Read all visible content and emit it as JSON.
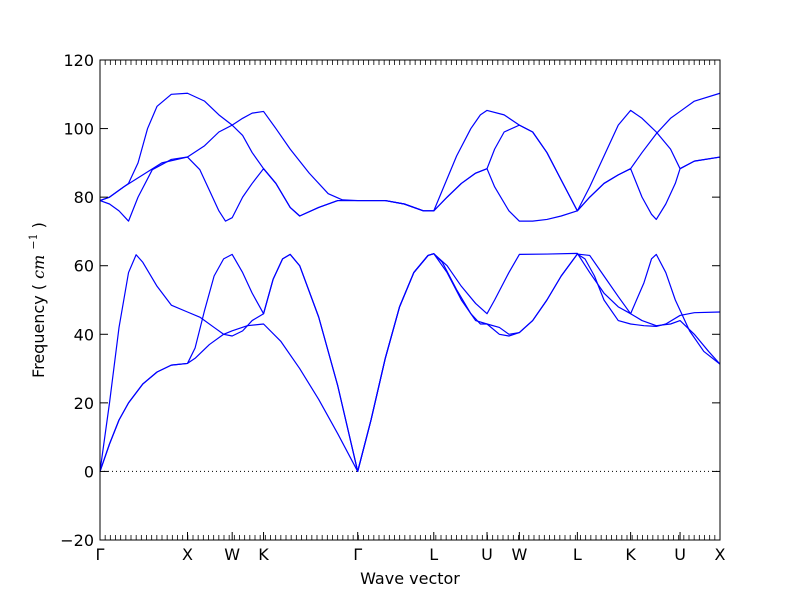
{
  "chart_data": {
    "type": "line",
    "title": "",
    "xlabel": "Wave vector",
    "ylabel": "Frequency",
    "ylabel_unit_base": "cm",
    "ylabel_unit_exp": "−1",
    "ylim": [
      -20,
      120
    ],
    "yticks": [
      -20,
      0,
      20,
      40,
      60,
      80,
      100,
      120
    ],
    "xlim": [
      0,
      6.52
    ],
    "high_symmetry_points": [
      {
        "label": "Γ",
        "x": 0.0
      },
      {
        "label": "X",
        "x": 0.92
      },
      {
        "label": "W",
        "x": 1.39
      },
      {
        "label": "K",
        "x": 1.72
      },
      {
        "label": "Γ",
        "x": 2.71
      },
      {
        "label": "L",
        "x": 3.51
      },
      {
        "label": "U",
        "x": 4.07
      },
      {
        "label": "W",
        "x": 4.41
      },
      {
        "label": "L",
        "x": 5.02
      },
      {
        "label": "K",
        "x": 5.58
      },
      {
        "label": "U",
        "x": 6.1
      },
      {
        "label": "X",
        "x": 6.52
      }
    ],
    "zero_line": {
      "y": 0,
      "style": "dotted"
    },
    "line_color": "#0000ff",
    "series": [
      {
        "values": [
          [
            0,
            0
          ],
          [
            0.1,
            8
          ],
          [
            0.2,
            15
          ],
          [
            0.3,
            20
          ],
          [
            0.45,
            25.5
          ],
          [
            0.6,
            29
          ],
          [
            0.75,
            31
          ],
          [
            0.92,
            31.5
          ],
          [
            1.0,
            33
          ],
          [
            1.15,
            37
          ],
          [
            1.3,
            40
          ],
          [
            1.39,
            41
          ],
          [
            1.55,
            42.5
          ],
          [
            1.72,
            43
          ],
          [
            1.9,
            38
          ],
          [
            2.1,
            30
          ],
          [
            2.3,
            21
          ],
          [
            2.5,
            11
          ],
          [
            2.71,
            0
          ],
          [
            2.85,
            15
          ],
          [
            3.0,
            33
          ],
          [
            3.15,
            48
          ],
          [
            3.3,
            58
          ],
          [
            3.45,
            63
          ],
          [
            3.51,
            63.5
          ],
          [
            3.65,
            60
          ],
          [
            3.8,
            54
          ],
          [
            3.95,
            49
          ],
          [
            4.07,
            46
          ],
          [
            4.15,
            50
          ],
          [
            4.3,
            58
          ],
          [
            4.41,
            63.3
          ],
          [
            4.7,
            63.4
          ],
          [
            5.02,
            63.6
          ],
          [
            5.15,
            58
          ],
          [
            5.3,
            52
          ],
          [
            5.45,
            48
          ],
          [
            5.58,
            46
          ],
          [
            5.7,
            44
          ],
          [
            5.85,
            42.5
          ],
          [
            6.0,
            43
          ],
          [
            6.1,
            44
          ],
          [
            6.25,
            40
          ],
          [
            6.4,
            35
          ],
          [
            6.52,
            31.3
          ]
        ]
      },
      {
        "values": [
          [
            0,
            0
          ],
          [
            0.1,
            8
          ],
          [
            0.2,
            15
          ],
          [
            0.3,
            20
          ],
          [
            0.45,
            25.5
          ],
          [
            0.6,
            29
          ],
          [
            0.75,
            31
          ],
          [
            0.92,
            31.5
          ],
          [
            1.0,
            36
          ],
          [
            1.1,
            47
          ],
          [
            1.2,
            57
          ],
          [
            1.3,
            62
          ],
          [
            1.39,
            63.3
          ],
          [
            1.5,
            58
          ],
          [
            1.6,
            52
          ],
          [
            1.72,
            46
          ],
          [
            1.82,
            56
          ],
          [
            1.92,
            62
          ],
          [
            2.0,
            63.3
          ],
          [
            2.1,
            60
          ],
          [
            2.3,
            45
          ],
          [
            2.5,
            25
          ],
          [
            2.71,
            0
          ],
          [
            2.85,
            15
          ],
          [
            3.0,
            33
          ],
          [
            3.15,
            48
          ],
          [
            3.3,
            58
          ],
          [
            3.45,
            63
          ],
          [
            3.51,
            63.5
          ],
          [
            3.65,
            58
          ],
          [
            3.8,
            50
          ],
          [
            3.95,
            44
          ],
          [
            4.07,
            43
          ],
          [
            4.2,
            42
          ],
          [
            4.3,
            40
          ],
          [
            4.41,
            40.5
          ],
          [
            4.55,
            44
          ],
          [
            4.7,
            50
          ],
          [
            4.85,
            57
          ],
          [
            5.02,
            63.4
          ],
          [
            5.15,
            63
          ],
          [
            5.3,
            57
          ],
          [
            5.45,
            51
          ],
          [
            5.58,
            46
          ],
          [
            5.72,
            55
          ],
          [
            5.8,
            62
          ],
          [
            5.85,
            63.3
          ],
          [
            5.95,
            58
          ],
          [
            6.05,
            50
          ],
          [
            6.1,
            47
          ],
          [
            6.2,
            41
          ],
          [
            6.35,
            35
          ],
          [
            6.52,
            31.3
          ]
        ]
      },
      {
        "values": [
          [
            0,
            0
          ],
          [
            0.1,
            20
          ],
          [
            0.2,
            42
          ],
          [
            0.3,
            58
          ],
          [
            0.38,
            63.2
          ],
          [
            0.45,
            61
          ],
          [
            0.6,
            54
          ],
          [
            0.75,
            48.5
          ],
          [
            0.92,
            46.5
          ],
          [
            1.05,
            45
          ],
          [
            1.2,
            42
          ],
          [
            1.3,
            40
          ],
          [
            1.39,
            39.5
          ],
          [
            1.5,
            41
          ],
          [
            1.6,
            44
          ],
          [
            1.72,
            46
          ],
          [
            1.82,
            56
          ],
          [
            1.92,
            62
          ],
          [
            2.0,
            63.3
          ],
          [
            2.1,
            60
          ],
          [
            2.3,
            45
          ],
          [
            2.5,
            25
          ],
          [
            2.71,
            0
          ],
          [
            2.85,
            15
          ],
          [
            3.0,
            33
          ],
          [
            3.15,
            48
          ],
          [
            3.3,
            58
          ],
          [
            3.45,
            63
          ],
          [
            3.51,
            63.5
          ],
          [
            3.6,
            61
          ],
          [
            3.75,
            53
          ],
          [
            3.9,
            46
          ],
          [
            4.0,
            43
          ],
          [
            4.07,
            43
          ],
          [
            4.2,
            40
          ],
          [
            4.3,
            39.5
          ],
          [
            4.41,
            40.5
          ],
          [
            4.55,
            44
          ],
          [
            4.7,
            50
          ],
          [
            4.85,
            57
          ],
          [
            5.02,
            63.4
          ],
          [
            5.1,
            62
          ],
          [
            5.2,
            57
          ],
          [
            5.3,
            50
          ],
          [
            5.45,
            44
          ],
          [
            5.58,
            43
          ],
          [
            5.72,
            42.5
          ],
          [
            5.85,
            42.3
          ],
          [
            5.95,
            43
          ],
          [
            6.1,
            45.5
          ],
          [
            6.25,
            46.3
          ],
          [
            6.52,
            46.5
          ]
        ]
      },
      {
        "values": [
          [
            0,
            79
          ],
          [
            0.1,
            78
          ],
          [
            0.2,
            76
          ],
          [
            0.3,
            73
          ],
          [
            0.4,
            80
          ],
          [
            0.55,
            88
          ],
          [
            0.75,
            91
          ],
          [
            0.92,
            91.7
          ],
          [
            1.05,
            88
          ],
          [
            1.15,
            82
          ],
          [
            1.25,
            76
          ],
          [
            1.32,
            73
          ],
          [
            1.39,
            74
          ],
          [
            1.5,
            80
          ],
          [
            1.6,
            84
          ],
          [
            1.72,
            88.3
          ],
          [
            1.85,
            84
          ],
          [
            2.0,
            77
          ],
          [
            2.1,
            74.5
          ],
          [
            2.3,
            77
          ],
          [
            2.5,
            79
          ],
          [
            2.71,
            79
          ],
          [
            3.0,
            79
          ],
          [
            3.2,
            78
          ],
          [
            3.4,
            76
          ],
          [
            3.51,
            76
          ],
          [
            3.65,
            80
          ],
          [
            3.8,
            84
          ],
          [
            3.95,
            87
          ],
          [
            4.07,
            88.3
          ],
          [
            4.15,
            83
          ],
          [
            4.3,
            76
          ],
          [
            4.41,
            73
          ],
          [
            4.55,
            73
          ],
          [
            4.7,
            73.5
          ],
          [
            4.85,
            74.5
          ],
          [
            5.02,
            76
          ],
          [
            5.15,
            80
          ],
          [
            5.3,
            84
          ],
          [
            5.45,
            86.5
          ],
          [
            5.58,
            88.3
          ],
          [
            5.7,
            80
          ],
          [
            5.8,
            75
          ],
          [
            5.85,
            73.5
          ],
          [
            5.95,
            78
          ],
          [
            6.05,
            84
          ],
          [
            6.1,
            88.3
          ],
          [
            6.25,
            90.5
          ],
          [
            6.52,
            91.7
          ]
        ]
      },
      {
        "values": [
          [
            0,
            79
          ],
          [
            0.1,
            80
          ],
          [
            0.25,
            83
          ],
          [
            0.45,
            86.5
          ],
          [
            0.65,
            90
          ],
          [
            0.92,
            91.7
          ],
          [
            1.1,
            95
          ],
          [
            1.25,
            99
          ],
          [
            1.39,
            101
          ],
          [
            1.5,
            98
          ],
          [
            1.6,
            93
          ],
          [
            1.72,
            88.3
          ],
          [
            1.85,
            84
          ],
          [
            2.0,
            77
          ],
          [
            2.1,
            74.5
          ],
          [
            2.3,
            77
          ],
          [
            2.5,
            79
          ],
          [
            2.71,
            79
          ],
          [
            3.0,
            79
          ],
          [
            3.2,
            78
          ],
          [
            3.4,
            76
          ],
          [
            3.51,
            76
          ],
          [
            3.65,
            80
          ],
          [
            3.8,
            84
          ],
          [
            3.95,
            87
          ],
          [
            4.07,
            88.3
          ],
          [
            4.15,
            94
          ],
          [
            4.25,
            99
          ],
          [
            4.41,
            101
          ],
          [
            4.55,
            99
          ],
          [
            4.7,
            93
          ],
          [
            4.85,
            85
          ],
          [
            5.02,
            76
          ],
          [
            5.15,
            80
          ],
          [
            5.3,
            84
          ],
          [
            5.45,
            86.5
          ],
          [
            5.58,
            88.3
          ],
          [
            5.7,
            93
          ],
          [
            5.85,
            98.5
          ],
          [
            6.0,
            103
          ],
          [
            6.1,
            105
          ],
          [
            6.25,
            108
          ],
          [
            6.52,
            110.3
          ]
        ]
      },
      {
        "values": [
          [
            0,
            79
          ],
          [
            0.1,
            80
          ],
          [
            0.2,
            82
          ],
          [
            0.3,
            84
          ],
          [
            0.4,
            90
          ],
          [
            0.5,
            100
          ],
          [
            0.6,
            106.5
          ],
          [
            0.75,
            110
          ],
          [
            0.92,
            110.3
          ],
          [
            1.1,
            108
          ],
          [
            1.25,
            104
          ],
          [
            1.39,
            101
          ],
          [
            1.5,
            103
          ],
          [
            1.6,
            104.5
          ],
          [
            1.72,
            105
          ],
          [
            1.85,
            100
          ],
          [
            2.0,
            94
          ],
          [
            2.2,
            87
          ],
          [
            2.4,
            81
          ],
          [
            2.55,
            79.2
          ],
          [
            2.71,
            79
          ],
          [
            3.0,
            79
          ],
          [
            3.2,
            78
          ],
          [
            3.4,
            76
          ],
          [
            3.51,
            76
          ],
          [
            3.6,
            82
          ],
          [
            3.75,
            92
          ],
          [
            3.9,
            100
          ],
          [
            4.0,
            104
          ],
          [
            4.07,
            105.3
          ],
          [
            4.25,
            104
          ],
          [
            4.41,
            101
          ],
          [
            4.55,
            99
          ],
          [
            4.7,
            93
          ],
          [
            4.85,
            85
          ],
          [
            5.02,
            76
          ],
          [
            5.15,
            83
          ],
          [
            5.3,
            92
          ],
          [
            5.45,
            101
          ],
          [
            5.58,
            105.3
          ],
          [
            5.7,
            103
          ],
          [
            5.85,
            99
          ],
          [
            6.0,
            94
          ],
          [
            6.1,
            88.3
          ],
          [
            6.25,
            90.5
          ],
          [
            6.52,
            91.7
          ]
        ]
      }
    ]
  }
}
